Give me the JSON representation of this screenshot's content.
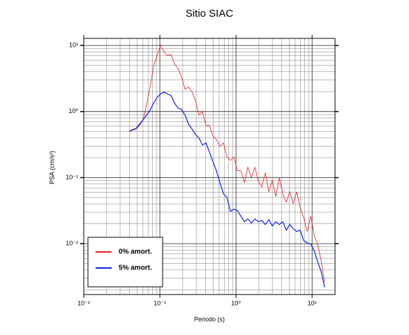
{
  "chart_data": {
    "type": "line",
    "title": "Sitio SIAC",
    "xlabel": "Periodo (s)",
    "ylabel": "PSA (cm/s²)",
    "log_x": true,
    "log_y": true,
    "grid": true,
    "legend_position": "lower left",
    "xlim": [
      0.01,
      20
    ],
    "ylim": [
      0.0017,
      12.8
    ],
    "xticks": [
      {
        "value": 0.01,
        "label": "10⁻²"
      },
      {
        "value": 0.1,
        "label": "10⁻¹"
      },
      {
        "value": 1,
        "label": "10⁰"
      },
      {
        "value": 10,
        "label": "10¹"
      }
    ],
    "yticks": [
      {
        "value": 0.01,
        "label": "10⁻²"
      },
      {
        "value": 0.1,
        "label": "10⁻¹"
      },
      {
        "value": 1,
        "label": "10⁰"
      },
      {
        "value": 10,
        "label": "10¹"
      }
    ],
    "xminorticks": [
      0.02,
      0.03,
      0.04,
      0.05,
      0.06,
      0.07,
      0.08,
      0.09,
      0.2,
      0.3,
      0.4,
      0.5,
      0.6,
      0.7,
      0.8,
      0.9,
      2,
      3,
      4,
      5,
      6,
      7,
      8,
      9
    ],
    "yminorticks": [
      0.002,
      0.003,
      0.004,
      0.005,
      0.006,
      0.007,
      0.008,
      0.009,
      0.02,
      0.03,
      0.04,
      0.05,
      0.06,
      0.07,
      0.08,
      0.09,
      0.2,
      0.3,
      0.4,
      0.5,
      0.6,
      0.7,
      0.8,
      0.9,
      2,
      3,
      4,
      5,
      6,
      7,
      8,
      9
    ],
    "x": [
      0.0395,
      0.0439,
      0.0488,
      0.0542,
      0.0602,
      0.067,
      0.0744,
      0.0827,
      0.0919,
      0.102,
      0.114,
      0.126,
      0.14,
      0.156,
      0.173,
      0.192,
      0.214,
      0.238,
      0.264,
      0.294,
      0.327,
      0.363,
      0.403,
      0.448,
      0.498,
      0.553,
      0.615,
      0.684,
      0.76,
      0.845,
      0.939,
      1.04,
      1.16,
      1.29,
      1.43,
      1.59,
      1.77,
      1.97,
      2.18,
      2.43,
      2.7,
      3.0,
      3.33,
      3.71,
      4.12,
      4.58,
      5.08,
      5.65,
      6.28,
      6.98,
      7.76,
      8.63,
      9.59,
      10.7,
      11.8,
      13.2,
      14.6
    ],
    "series": [
      {
        "name": "0% amort.",
        "color": "#e02020",
        "width": 0.8,
        "values": [
          0.506,
          0.519,
          0.545,
          0.615,
          0.747,
          1.28,
          2.34,
          4.86,
          7.0,
          10.1,
          7.9,
          7.0,
          7.34,
          5.22,
          4.52,
          3.37,
          2.18,
          2.34,
          1.98,
          1.44,
          0.885,
          1.0,
          0.615,
          0.615,
          0.427,
          0.378,
          0.296,
          0.335,
          0.206,
          0.182,
          0.206,
          0.127,
          0.127,
          0.0838,
          0.143,
          0.0993,
          0.143,
          0.0879,
          0.0724,
          0.118,
          0.0611,
          0.0923,
          0.0515,
          0.0993,
          0.0568,
          0.0424,
          0.0611,
          0.0404,
          0.0611,
          0.0349,
          0.0248,
          0.0153,
          0.0261,
          0.0132,
          0.00986,
          0.00537,
          0.00259
        ]
      },
      {
        "name": "5% amort.",
        "color": "#1020e0",
        "width": 1.2,
        "values": [
          0.506,
          0.531,
          0.558,
          0.646,
          0.747,
          0.885,
          1.05,
          1.34,
          1.63,
          1.84,
          1.98,
          1.84,
          1.75,
          1.34,
          1.13,
          1.08,
          0.885,
          0.646,
          0.545,
          0.449,
          0.397,
          0.311,
          0.335,
          0.244,
          0.174,
          0.127,
          0.0838,
          0.0568,
          0.0502,
          0.0309,
          0.0333,
          0.0317,
          0.0261,
          0.0215,
          0.0237,
          0.0204,
          0.0237,
          0.0215,
          0.0225,
          0.0195,
          0.0231,
          0.0185,
          0.0215,
          0.0195,
          0.0215,
          0.016,
          0.0195,
          0.0168,
          0.0153,
          0.016,
          0.0111,
          0.0103,
          0.00986,
          0.00773,
          0.00537,
          0.00373,
          0.00218
        ]
      }
    ]
  }
}
